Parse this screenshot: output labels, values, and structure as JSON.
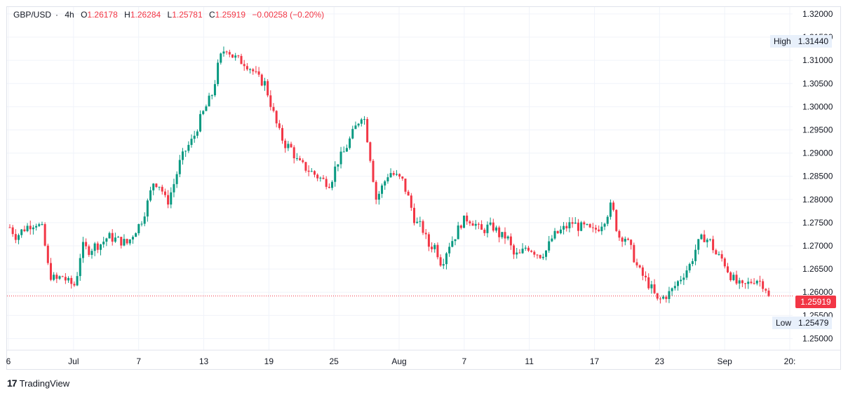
{
  "legend": {
    "symbol": "GBP/USD",
    "sep": "·",
    "interval": "4h",
    "open_label": "O",
    "open": "1.26178",
    "high_label": "H",
    "high": "1.26284",
    "low_label": "L",
    "low": "1.25781",
    "close_label": "C",
    "close": "1.25919",
    "change": "−0.00258 (−0.20%)"
  },
  "markers": {
    "high_label": "High",
    "high_value": "1.31440",
    "low_label": "Low",
    "low_value": "1.25479",
    "last_price": "1.25919"
  },
  "brand": {
    "logo": "17",
    "name": "TradingView"
  },
  "colors": {
    "up": "#089981",
    "down": "#f23645",
    "grid": "#f0f3fa"
  },
  "chart_data": {
    "type": "candlestick",
    "ylim": [
      1.2475,
      1.3215
    ],
    "y_ticks": [
      "1.25000",
      "1.25500",
      "1.26000",
      "1.26500",
      "1.27000",
      "1.27500",
      "1.28000",
      "1.28500",
      "1.29000",
      "1.29500",
      "1.30000",
      "1.30500",
      "1.31000",
      "1.31500",
      "1.32000"
    ],
    "x_ticks": [
      "6",
      "Jul",
      "7",
      "13",
      "19",
      "25",
      "Aug",
      "7",
      "11",
      "17",
      "23",
      "Sep",
      "20:"
    ],
    "close_path": [
      1.274,
      1.272,
      1.2735,
      1.2745,
      1.275,
      1.2735,
      1.264,
      1.2625,
      1.2635,
      1.262,
      1.2615,
      1.27,
      1.269,
      1.27,
      1.2705,
      1.272,
      1.2715,
      1.271,
      1.2705,
      1.273,
      1.275,
      1.279,
      1.284,
      1.283,
      1.279,
      1.283,
      1.288,
      1.291,
      1.293,
      1.297,
      1.3,
      1.303,
      1.31,
      1.313,
      1.311,
      1.31,
      1.3095,
      1.308,
      1.306,
      1.305,
      1.3,
      1.295,
      1.292,
      1.291,
      1.288,
      1.287,
      1.286,
      1.285,
      1.284,
      1.2835,
      1.288,
      1.29,
      1.293,
      1.296,
      1.299,
      1.29,
      1.28,
      1.283,
      1.286,
      1.285,
      1.284,
      1.28,
      1.275,
      1.274,
      1.27,
      1.27,
      1.266,
      1.27,
      1.272,
      1.275,
      1.276,
      1.275,
      1.273,
      1.274,
      1.274,
      1.272,
      1.272,
      1.268,
      1.268,
      1.27,
      1.269,
      1.268,
      1.269,
      1.272,
      1.273,
      1.274,
      1.275,
      1.274,
      1.274,
      1.273,
      1.274,
      1.276,
      1.279,
      1.272,
      1.272,
      1.269,
      1.265,
      1.263,
      1.261,
      1.258,
      1.259,
      1.26,
      1.262,
      1.264,
      1.266,
      1.27,
      1.272,
      1.271,
      1.268,
      1.267,
      1.264,
      1.262,
      1.261,
      1.262,
      1.263,
      1.262,
      1.26
    ],
    "high_value": 1.3144,
    "low_value": 1.25479,
    "last_close": 1.25919
  }
}
